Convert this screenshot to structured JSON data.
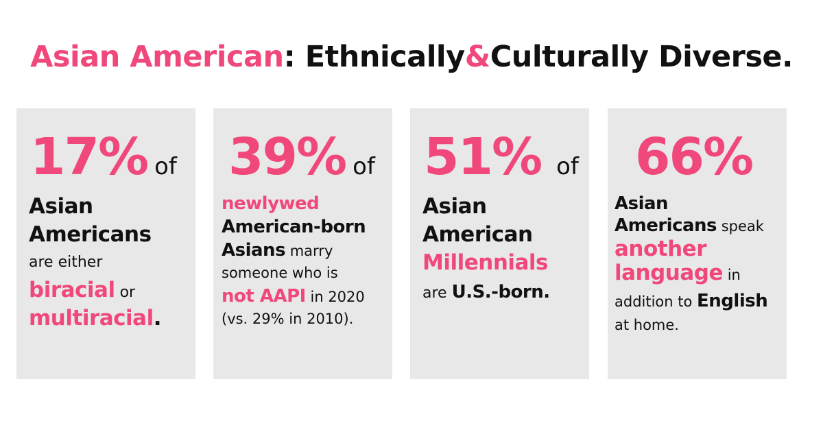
{
  "title": {
    "part1": "Asian American",
    "part2": ": Ethnically",
    "part3": "&",
    "part4": "Culturally Diverse."
  },
  "cards": [
    {
      "pct": "17%",
      "of": "of",
      "l1": "Asian",
      "l2": "Americans",
      "l3": "are either",
      "l4a": "biracial",
      "l4b": " or",
      "l5a": "multiracial",
      "l5b": "."
    },
    {
      "pct": "39%",
      "of": "of",
      "l1": "newlywed",
      "l2": "American-born",
      "l3a": "Asians",
      "l3b": " marry",
      "l4": "someone who is",
      "l5a": "not AAPI",
      "l5b": " in 2020",
      "l6": "(vs. 29% in 2010)."
    },
    {
      "pct": "51%",
      "of": "of",
      "l1": "Asian",
      "l2": "American",
      "l3": "Millennials",
      "l4a": "are ",
      "l4b": "U.S.-born."
    },
    {
      "pct": "66%",
      "l1": "Asian",
      "l2a": "Americans",
      "l2b": " speak",
      "l3": "another",
      "l4a": "language",
      "l4b": " in",
      "l5a": "addition to ",
      "l5b": "English",
      "l6": "at home."
    }
  ],
  "colors": {
    "accent": "#f0487a",
    "card_bg": "#e8e8e8",
    "text": "#111111"
  }
}
